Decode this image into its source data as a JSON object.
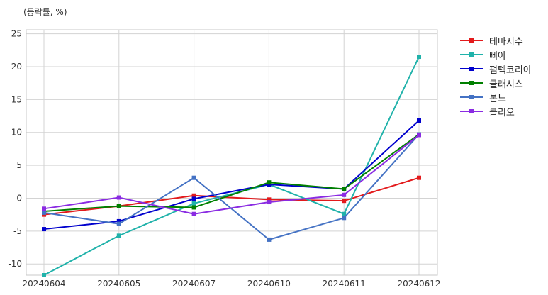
{
  "chart_data": {
    "type": "line",
    "title": "",
    "unit_label": "(등락률, %)",
    "categories": [
      "20240604",
      "20240605",
      "20240607",
      "20240610",
      "20240611",
      "20240612"
    ],
    "ylim": [
      -11.7,
      25.6
    ],
    "yticks": [
      -10,
      -5,
      0,
      5,
      10,
      15,
      20,
      25
    ],
    "grid": true,
    "legend_position": "right",
    "series": [
      {
        "name": "테마지수",
        "color": "#e31a1c",
        "values": [
          -2.5,
          -1.2,
          0.4,
          -0.2,
          -0.4,
          3.1
        ]
      },
      {
        "name": "삐아",
        "color": "#20b2aa",
        "values": [
          -11.7,
          -5.7,
          -0.8,
          2.1,
          -2.4,
          21.5
        ]
      },
      {
        "name": "펌텍코리아",
        "color": "#0000cd",
        "values": [
          -4.7,
          -3.5,
          -0.1,
          2.1,
          1.4,
          11.8
        ]
      },
      {
        "name": "클래시스",
        "color": "#008000",
        "values": [
          -2.0,
          -1.2,
          -1.4,
          2.4,
          1.4,
          9.7
        ]
      },
      {
        "name": "본느",
        "color": "#4472c4",
        "values": [
          -2.2,
          -3.9,
          3.1,
          -6.3,
          -3.0,
          9.7
        ]
      },
      {
        "name": "클리오",
        "color": "#8a2be2",
        "values": [
          -1.6,
          0.1,
          -2.4,
          -0.6,
          0.5,
          9.6
        ]
      }
    ]
  }
}
